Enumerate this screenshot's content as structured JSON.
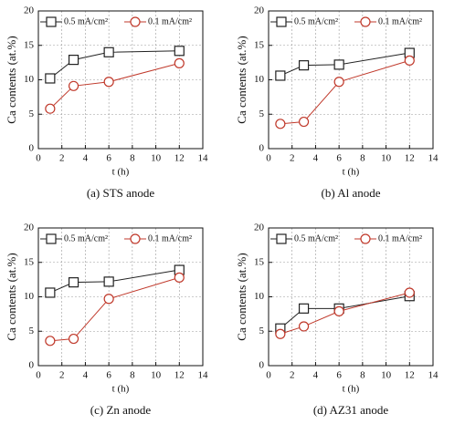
{
  "chart_data": [
    {
      "type": "line",
      "caption": "(a) STS anode",
      "xlabel": "t (h)",
      "ylabel": "Ca contents (at.%)",
      "x": [
        1,
        3,
        6,
        12
      ],
      "series": [
        {
          "name": "0.5 mA/cm²",
          "color": "#222222",
          "marker": "square",
          "values": [
            10.2,
            12.9,
            14.0,
            14.2
          ]
        },
        {
          "name": "0.1 mA/cm²",
          "color": "#c0392b",
          "marker": "circle",
          "values": [
            5.8,
            9.1,
            9.7,
            12.4
          ]
        }
      ],
      "xlim": [
        0,
        14
      ],
      "xticks": [
        0,
        2,
        4,
        6,
        8,
        10,
        12,
        14
      ],
      "ylim": [
        0,
        20
      ],
      "yticks": [
        0,
        5,
        10,
        15,
        20
      ],
      "grid": true,
      "legend": "top"
    },
    {
      "type": "line",
      "caption": "(b) Al anode",
      "xlabel": "t (h)",
      "ylabel": "Ca contents (at.%)",
      "x": [
        1,
        3,
        6,
        12
      ],
      "series": [
        {
          "name": "0.5 mA/cm²",
          "color": "#222222",
          "marker": "square",
          "values": [
            10.6,
            12.1,
            12.2,
            13.9
          ]
        },
        {
          "name": "0.1 mA/cm²",
          "color": "#c0392b",
          "marker": "circle",
          "values": [
            3.6,
            3.9,
            9.7,
            12.8
          ]
        }
      ],
      "xlim": [
        0,
        14
      ],
      "xticks": [
        0,
        2,
        4,
        6,
        8,
        10,
        12,
        14
      ],
      "ylim": [
        0,
        20
      ],
      "yticks": [
        0,
        5,
        10,
        15,
        20
      ],
      "grid": true,
      "legend": "top"
    },
    {
      "type": "line",
      "caption": "(c) Zn anode",
      "xlabel": "t (h)",
      "ylabel": "Ca contents (at.%)",
      "x": [
        1,
        3,
        6,
        12
      ],
      "series": [
        {
          "name": "0.5 mA/cm²",
          "color": "#222222",
          "marker": "square",
          "values": [
            10.6,
            12.1,
            12.2,
            13.9
          ]
        },
        {
          "name": "0.1 mA/cm²",
          "color": "#c0392b",
          "marker": "circle",
          "values": [
            3.6,
            3.9,
            9.7,
            12.8
          ]
        }
      ],
      "xlim": [
        0,
        14
      ],
      "xticks": [
        0,
        2,
        4,
        6,
        8,
        10,
        12,
        14
      ],
      "ylim": [
        0,
        20
      ],
      "yticks": [
        0,
        5,
        10,
        15,
        20
      ],
      "grid": true,
      "legend": "top"
    },
    {
      "type": "line",
      "caption": "(d) AZ31 anode",
      "xlabel": "t (h)",
      "ylabel": "Ca contents (at.%)",
      "x": [
        1,
        3,
        6,
        12
      ],
      "series": [
        {
          "name": "0.5 mA/cm²",
          "color": "#222222",
          "marker": "square",
          "values": [
            5.4,
            8.3,
            8.3,
            10.1
          ]
        },
        {
          "name": "0.1 mA/cm²",
          "color": "#c0392b",
          "marker": "circle",
          "values": [
            4.6,
            5.7,
            7.9,
            10.6
          ]
        }
      ],
      "xlim": [
        0,
        14
      ],
      "xticks": [
        0,
        2,
        4,
        6,
        8,
        10,
        12,
        14
      ],
      "ylim": [
        0,
        20
      ],
      "yticks": [
        0,
        5,
        10,
        15,
        20
      ],
      "grid": true,
      "legend": "top"
    }
  ]
}
